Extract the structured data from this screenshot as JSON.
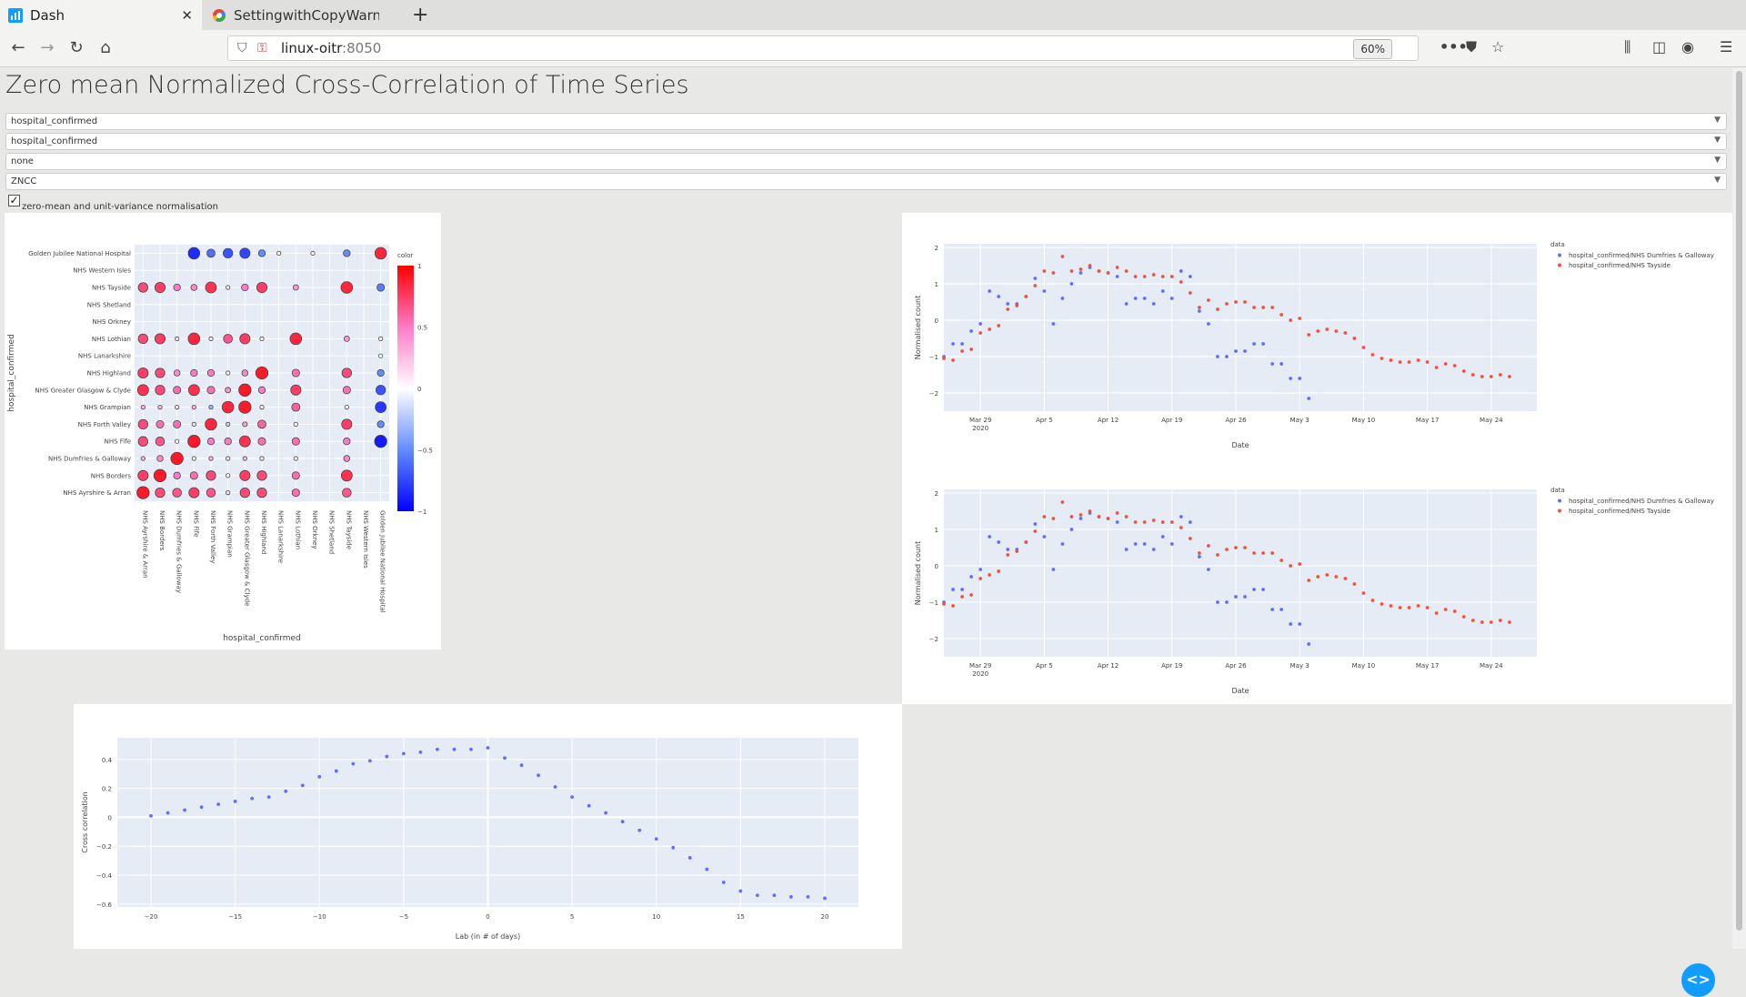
{
  "browser": {
    "tabs": [
      {
        "title": "Dash",
        "active": true
      },
      {
        "title": "SettingwithCopyWarning",
        "active": false
      }
    ],
    "url_host": "linux-oitr",
    "url_port": ":8050",
    "zoom": "60%"
  },
  "page": {
    "title": "Zero mean Normalized Cross-Correlation of Time Series",
    "dropdowns": [
      {
        "value": "hospital_confirmed"
      },
      {
        "value": "hospital_confirmed"
      },
      {
        "value": "none"
      },
      {
        "value": "ZNCC"
      }
    ],
    "checkbox": {
      "label": "zero-mean and unit-variance normalisation",
      "checked": true
    }
  },
  "colors": {
    "blue": "#636efa",
    "red": "#ef553b",
    "dash_button": "#119dff"
  },
  "chart_data": [
    {
      "type": "scatter",
      "title": "",
      "xlabel": "hospital_confirmed",
      "ylabel": "hospital_confirmed",
      "colorbar_title": "color",
      "colorbar_ticks": [
        "1",
        "0.5",
        "0",
        "−0.5",
        "−1"
      ],
      "rows": [
        "Golden Jubilee National Hospital",
        "NHS Western Isles",
        "NHS Tayside",
        "NHS Shetland",
        "NHS Orkney",
        "NHS Lothian",
        "NHS Lanarkshire",
        "NHS Highland",
        "NHS Greater Glasgow & Clyde",
        "NHS Grampian",
        "NHS Forth Valley",
        "NHS Fife",
        "NHS Dumfries & Galloway",
        "NHS Borders",
        "NHS Ayrshire & Arran"
      ],
      "cols": [
        "NHS Ayrshire & Arran",
        "NHS Borders",
        "NHS Dumfries & Galloway",
        "NHS Fife",
        "NHS Forth Valley",
        "NHS Grampian",
        "NHS Greater Glasgow & Clyde",
        "NHS Highland",
        "NHS Lanarkshire",
        "NHS Lothian",
        "NHS Orkney",
        "NHS Shetland",
        "NHS Tayside",
        "NHS Western Isles",
        "Golden Jubilee National Hospital"
      ],
      "matrix": [
        [
          null,
          null,
          null,
          -0.85,
          -0.6,
          -0.7,
          -0.75,
          -0.5,
          0.02,
          null,
          0.03,
          null,
          -0.5,
          null,
          0.85
        ],
        [
          null,
          null,
          null,
          null,
          null,
          null,
          null,
          null,
          null,
          null,
          null,
          null,
          null,
          null,
          null
        ],
        [
          0.7,
          0.75,
          0.5,
          0.45,
          0.8,
          0.05,
          0.5,
          0.75,
          null,
          0.4,
          null,
          null,
          0.85,
          null,
          -0.55
        ],
        [
          null,
          null,
          null,
          null,
          null,
          null,
          null,
          null,
          null,
          null,
          null,
          null,
          null,
          null,
          null
        ],
        [
          null,
          null,
          null,
          null,
          null,
          null,
          null,
          null,
          null,
          null,
          null,
          null,
          null,
          null,
          null
        ],
        [
          0.7,
          0.75,
          0.15,
          0.85,
          0.1,
          0.65,
          0.75,
          0.05,
          null,
          0.85,
          null,
          null,
          0.4,
          null,
          0.05
        ],
        [
          null,
          null,
          null,
          null,
          null,
          null,
          null,
          null,
          null,
          null,
          null,
          null,
          null,
          null,
          0.02
        ],
        [
          0.75,
          0.7,
          0.45,
          0.5,
          0.5,
          0.05,
          0.45,
          0.9,
          null,
          0.55,
          null,
          null,
          0.7,
          null,
          -0.5
        ],
        [
          0.8,
          0.7,
          0.55,
          0.8,
          0.55,
          0.4,
          0.9,
          0.5,
          null,
          0.75,
          null,
          null,
          0.55,
          null,
          -0.7
        ],
        [
          0.3,
          0.25,
          0.15,
          0.3,
          -0.3,
          0.85,
          0.9,
          0.1,
          null,
          0.6,
          null,
          null,
          0.03,
          null,
          -0.8
        ],
        [
          0.7,
          0.55,
          0.55,
          0.15,
          0.85,
          -0.2,
          0.35,
          0.6,
          null,
          0.05,
          null,
          null,
          0.75,
          null,
          -0.5
        ],
        [
          0.7,
          0.65,
          0.05,
          0.9,
          0.5,
          0.5,
          0.8,
          0.55,
          null,
          0.55,
          null,
          null,
          0.5,
          null,
          -0.9
        ],
        [
          0.3,
          0.45,
          0.9,
          0.02,
          0.3,
          0.1,
          0.25,
          0.1,
          null,
          0.05,
          null,
          null,
          0.45,
          null,
          null
        ],
        [
          0.75,
          0.9,
          0.5,
          0.55,
          0.7,
          0.05,
          0.75,
          0.7,
          null,
          0.55,
          null,
          null,
          0.8,
          null,
          null
        ],
        [
          0.9,
          0.7,
          0.65,
          0.75,
          0.65,
          0.15,
          0.7,
          0.7,
          null,
          0.55,
          null,
          null,
          0.65,
          null,
          null
        ]
      ]
    },
    {
      "type": "scatter",
      "xlabel": "Date",
      "ylabel": "Normalised count",
      "legend_title": "data",
      "x_ticks": [
        "Mar 29\n2020",
        "Apr 5",
        "Apr 12",
        "Apr 19",
        "Apr 26",
        "May 3",
        "May 10",
        "May 17",
        "May 24"
      ],
      "y_ticks": [
        2,
        1,
        0,
        -1,
        -2
      ],
      "ylim": [
        -2.5,
        2.1
      ],
      "x_start": "2020-03-25",
      "x_end": "2020-05-29",
      "series": [
        {
          "name": "hospital_confirmed/NHS Dumfries & Galloway",
          "x": [
            "2020-03-25",
            "2020-03-26",
            "2020-03-27",
            "2020-03-28",
            "2020-03-29",
            "2020-03-30",
            "2020-03-31",
            "2020-04-01",
            "2020-04-02",
            "2020-04-03",
            "2020-04-04",
            "2020-04-05",
            "2020-04-06",
            "2020-04-07",
            "2020-04-08",
            "2020-04-09",
            "2020-04-10",
            "2020-04-11",
            "2020-04-12",
            "2020-04-13",
            "2020-04-14",
            "2020-04-15",
            "2020-04-16",
            "2020-04-17",
            "2020-04-18",
            "2020-04-19",
            "2020-04-20",
            "2020-04-21",
            "2020-04-22",
            "2020-04-23",
            "2020-04-24",
            "2020-04-25",
            "2020-04-26",
            "2020-04-27",
            "2020-04-28",
            "2020-04-29",
            "2020-04-30",
            "2020-05-01",
            "2020-05-02",
            "2020-05-03",
            "2020-05-04"
          ],
          "y": [
            -1.0,
            -0.65,
            -0.65,
            -0.3,
            -0.1,
            0.8,
            0.65,
            0.45,
            0.45,
            0.65,
            1.15,
            0.8,
            -0.1,
            0.6,
            1.0,
            1.3,
            1.45,
            1.35,
            1.3,
            1.2,
            0.45,
            0.6,
            0.6,
            0.45,
            0.8,
            0.6,
            1.35,
            1.2,
            0.25,
            -0.1,
            -1.0,
            -1.0,
            -0.85,
            -0.85,
            -0.65,
            -0.65,
            -1.2,
            -1.2,
            -1.6,
            -1.6,
            -2.15
          ]
        },
        {
          "name": "hospital_confirmed/NHS Tayside",
          "x": [
            "2020-03-25",
            "2020-03-26",
            "2020-03-27",
            "2020-03-28",
            "2020-03-29",
            "2020-03-30",
            "2020-03-31",
            "2020-04-01",
            "2020-04-02",
            "2020-04-03",
            "2020-04-04",
            "2020-04-05",
            "2020-04-06",
            "2020-04-07",
            "2020-04-08",
            "2020-04-09",
            "2020-04-10",
            "2020-04-11",
            "2020-04-12",
            "2020-04-13",
            "2020-04-14",
            "2020-04-15",
            "2020-04-16",
            "2020-04-17",
            "2020-04-18",
            "2020-04-19",
            "2020-04-20",
            "2020-04-21",
            "2020-04-22",
            "2020-04-23",
            "2020-04-24",
            "2020-04-25",
            "2020-04-26",
            "2020-04-27",
            "2020-04-28",
            "2020-04-29",
            "2020-04-30",
            "2020-05-01",
            "2020-05-02",
            "2020-05-03",
            "2020-05-04",
            "2020-05-05",
            "2020-05-06",
            "2020-05-07",
            "2020-05-08",
            "2020-05-09",
            "2020-05-10",
            "2020-05-11",
            "2020-05-12",
            "2020-05-13",
            "2020-05-14",
            "2020-05-15",
            "2020-05-16",
            "2020-05-17",
            "2020-05-18",
            "2020-05-19",
            "2020-05-20",
            "2020-05-21",
            "2020-05-22",
            "2020-05-23",
            "2020-05-24",
            "2020-05-25",
            "2020-05-26"
          ],
          "y": [
            -1.05,
            -1.1,
            -0.85,
            -0.8,
            -0.35,
            -0.25,
            -0.15,
            0.3,
            0.4,
            0.65,
            0.95,
            1.35,
            1.3,
            1.75,
            1.35,
            1.4,
            1.5,
            1.35,
            1.3,
            1.45,
            1.35,
            1.2,
            1.2,
            1.25,
            1.2,
            1.2,
            1.05,
            0.75,
            0.35,
            0.55,
            0.3,
            0.45,
            0.5,
            0.5,
            0.35,
            0.35,
            0.35,
            0.15,
            0.0,
            0.05,
            -0.4,
            -0.3,
            -0.25,
            -0.3,
            -0.35,
            -0.5,
            -0.75,
            -0.95,
            -1.05,
            -1.1,
            -1.15,
            -1.15,
            -1.1,
            -1.15,
            -1.3,
            -1.2,
            -1.25,
            -1.4,
            -1.5,
            -1.55,
            -1.55,
            -1.5,
            -1.55
          ]
        }
      ]
    },
    {
      "type": "scatter",
      "xlabel": "Date",
      "ylabel": "Normalised count",
      "legend_title": "data",
      "x_ticks": [
        "Mar 29\n2020",
        "Apr 5",
        "Apr 12",
        "Apr 19",
        "Apr 26",
        "May 3",
        "May 10",
        "May 17",
        "May 24"
      ],
      "y_ticks": [
        2,
        1,
        0,
        -1,
        -2
      ],
      "ylim": [
        -2.5,
        2.1
      ],
      "x_start": "2020-03-25",
      "x_end": "2020-05-29",
      "series": [
        {
          "name": "hospital_confirmed/NHS Dumfries & Galloway",
          "x": [
            "2020-03-25",
            "2020-03-26",
            "2020-03-27",
            "2020-03-28",
            "2020-03-29",
            "2020-03-30",
            "2020-03-31",
            "2020-04-01",
            "2020-04-02",
            "2020-04-03",
            "2020-04-04",
            "2020-04-05",
            "2020-04-06",
            "2020-04-07",
            "2020-04-08",
            "2020-04-09",
            "2020-04-10",
            "2020-04-11",
            "2020-04-12",
            "2020-04-13",
            "2020-04-14",
            "2020-04-15",
            "2020-04-16",
            "2020-04-17",
            "2020-04-18",
            "2020-04-19",
            "2020-04-20",
            "2020-04-21",
            "2020-04-22",
            "2020-04-23",
            "2020-04-24",
            "2020-04-25",
            "2020-04-26",
            "2020-04-27",
            "2020-04-28",
            "2020-04-29",
            "2020-04-30",
            "2020-05-01",
            "2020-05-02",
            "2020-05-03",
            "2020-05-04"
          ],
          "y": [
            -1.0,
            -0.65,
            -0.65,
            -0.3,
            -0.1,
            0.8,
            0.65,
            0.45,
            0.45,
            0.65,
            1.15,
            0.8,
            -0.1,
            0.6,
            1.0,
            1.3,
            1.45,
            1.35,
            1.3,
            1.2,
            0.45,
            0.6,
            0.6,
            0.45,
            0.8,
            0.6,
            1.35,
            1.2,
            0.25,
            -0.1,
            -1.0,
            -1.0,
            -0.85,
            -0.85,
            -0.65,
            -0.65,
            -1.2,
            -1.2,
            -1.6,
            -1.6,
            -2.15
          ]
        },
        {
          "name": "hospital_confirmed/NHS Tayside",
          "x": [
            "2020-03-25",
            "2020-03-26",
            "2020-03-27",
            "2020-03-28",
            "2020-03-29",
            "2020-03-30",
            "2020-03-31",
            "2020-04-01",
            "2020-04-02",
            "2020-04-03",
            "2020-04-04",
            "2020-04-05",
            "2020-04-06",
            "2020-04-07",
            "2020-04-08",
            "2020-04-09",
            "2020-04-10",
            "2020-04-11",
            "2020-04-12",
            "2020-04-13",
            "2020-04-14",
            "2020-04-15",
            "2020-04-16",
            "2020-04-17",
            "2020-04-18",
            "2020-04-19",
            "2020-04-20",
            "2020-04-21",
            "2020-04-22",
            "2020-04-23",
            "2020-04-24",
            "2020-04-25",
            "2020-04-26",
            "2020-04-27",
            "2020-04-28",
            "2020-04-29",
            "2020-04-30",
            "2020-05-01",
            "2020-05-02",
            "2020-05-03",
            "2020-05-04",
            "2020-05-05",
            "2020-05-06",
            "2020-05-07",
            "2020-05-08",
            "2020-05-09",
            "2020-05-10",
            "2020-05-11",
            "2020-05-12",
            "2020-05-13",
            "2020-05-14",
            "2020-05-15",
            "2020-05-16",
            "2020-05-17",
            "2020-05-18",
            "2020-05-19",
            "2020-05-20",
            "2020-05-21",
            "2020-05-22",
            "2020-05-23",
            "2020-05-24",
            "2020-05-25",
            "2020-05-26"
          ],
          "y": [
            -1.05,
            -1.1,
            -0.85,
            -0.8,
            -0.35,
            -0.25,
            -0.15,
            0.3,
            0.4,
            0.65,
            0.95,
            1.35,
            1.3,
            1.75,
            1.35,
            1.4,
            1.5,
            1.35,
            1.3,
            1.45,
            1.35,
            1.2,
            1.2,
            1.25,
            1.2,
            1.2,
            1.05,
            0.75,
            0.35,
            0.55,
            0.3,
            0.45,
            0.5,
            0.5,
            0.35,
            0.35,
            0.35,
            0.15,
            0.0,
            0.05,
            -0.4,
            -0.3,
            -0.25,
            -0.3,
            -0.35,
            -0.5,
            -0.75,
            -0.95,
            -1.05,
            -1.1,
            -1.15,
            -1.15,
            -1.1,
            -1.15,
            -1.3,
            -1.2,
            -1.25,
            -1.4,
            -1.5,
            -1.55,
            -1.55,
            -1.5,
            -1.55
          ]
        }
      ]
    },
    {
      "type": "scatter",
      "xlabel": "Lab (in # of days)",
      "ylabel": "Cross correlation",
      "x_ticks": [
        -20,
        -15,
        -10,
        -5,
        0,
        5,
        10,
        15,
        20
      ],
      "y_ticks": [
        0.4,
        0.2,
        0,
        -0.2,
        -0.4,
        -0.6
      ],
      "xlim": [
        -22,
        22
      ],
      "ylim": [
        -0.62,
        0.55
      ],
      "x": [
        -20,
        -19,
        -18,
        -17,
        -16,
        -15,
        -14,
        -13,
        -12,
        -11,
        -10,
        -9,
        -8,
        -7,
        -6,
        -5,
        -4,
        -3,
        -2,
        -1,
        0,
        1,
        2,
        3,
        4,
        5,
        6,
        7,
        8,
        9,
        10,
        11,
        12,
        13,
        14,
        15,
        16,
        17,
        18,
        19,
        20
      ],
      "y": [
        0.01,
        0.03,
        0.05,
        0.07,
        0.09,
        0.11,
        0.13,
        0.14,
        0.18,
        0.22,
        0.28,
        0.32,
        0.37,
        0.39,
        0.42,
        0.44,
        0.45,
        0.47,
        0.47,
        0.47,
        0.48,
        0.41,
        0.36,
        0.29,
        0.21,
        0.14,
        0.08,
        0.03,
        -0.03,
        -0.09,
        -0.15,
        -0.21,
        -0.28,
        -0.36,
        -0.45,
        -0.51,
        -0.54,
        -0.54,
        -0.55,
        -0.55,
        -0.56
      ]
    }
  ]
}
